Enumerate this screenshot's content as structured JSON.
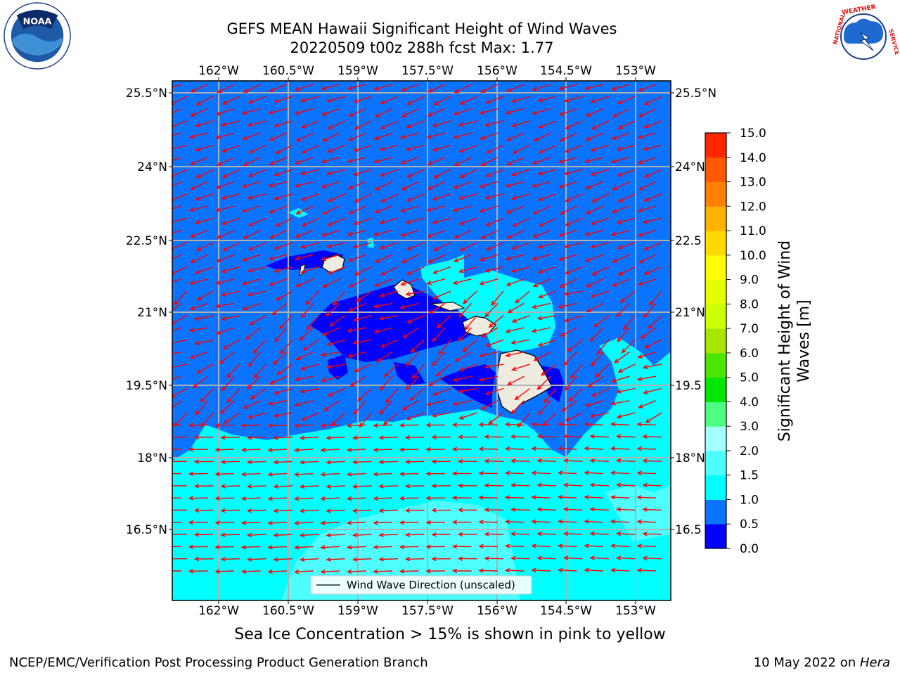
{
  "header": {
    "title_line1": "GEFS MEAN Hawaii Significant Height of Wind Waves",
    "title_line2": "20220509 t00z 288h fcst   Max: 1.77"
  },
  "logos": {
    "noaa": {
      "text": "NOAA",
      "ring_text": "NATIONAL OCEANIC AND ATMOSPHERIC ADMINISTRATION · U.S. DEPARTMENT OF COMMERCE"
    },
    "nws": {
      "ring_text": "NATIONAL WEATHER SERVICE"
    }
  },
  "map": {
    "lon_ticks": [
      "162°W",
      "160.5°W",
      "159°W",
      "157.5°W",
      "156°W",
      "154.5°W",
      "153°W"
    ],
    "lat_ticks": [
      "25.5°N",
      "24°N",
      "22.5°N",
      "21°N",
      "19.5°N",
      "18°N",
      "16.5°N"
    ],
    "lat_ticks_right": [
      "25.5°N",
      "24°N",
      "22.5",
      "21°N",
      "19.5",
      "18°N",
      "16.5"
    ],
    "legend_label": "Wind Wave Direction (unscaled)",
    "colors": {
      "band_0_0_5": "#0000ff",
      "band_0_5_1": "#0a73ff",
      "band_1_1_5": "#00ffff",
      "band_1_5_2": "#4dffff",
      "land": "#eeece0",
      "arrow": "#ff0000"
    }
  },
  "colorbar": {
    "label_line1": "Significant Height of Wind",
    "label_line2": "Waves [m]",
    "ticks": [
      "0.0",
      "0.5",
      "1.0",
      "1.5",
      "2.0",
      "3.0",
      "4.0",
      "5.0",
      "6.0",
      "7.0",
      "8.0",
      "9.0",
      "10.0",
      "11.0",
      "12.0",
      "13.0",
      "14.0",
      "15.0"
    ],
    "colors": [
      "#0000ff",
      "#0a73ff",
      "#00ffff",
      "#4dffff",
      "#a6ffff",
      "#4dff80",
      "#00e600",
      "#4de600",
      "#a6e600",
      "#ccff00",
      "#e6ff00",
      "#ffff00",
      "#ffd900",
      "#ffb300",
      "#ff8000",
      "#ff5900",
      "#ff2600"
    ]
  },
  "footer": {
    "sea_ice_note": "Sea Ice Concentration > 15% is shown in pink to yellow",
    "credit": "NCEP/EMC/Verification Post Processing Product Generation Branch",
    "date_prefix": "10 May 2022 on ",
    "date_machine": "Hera"
  }
}
